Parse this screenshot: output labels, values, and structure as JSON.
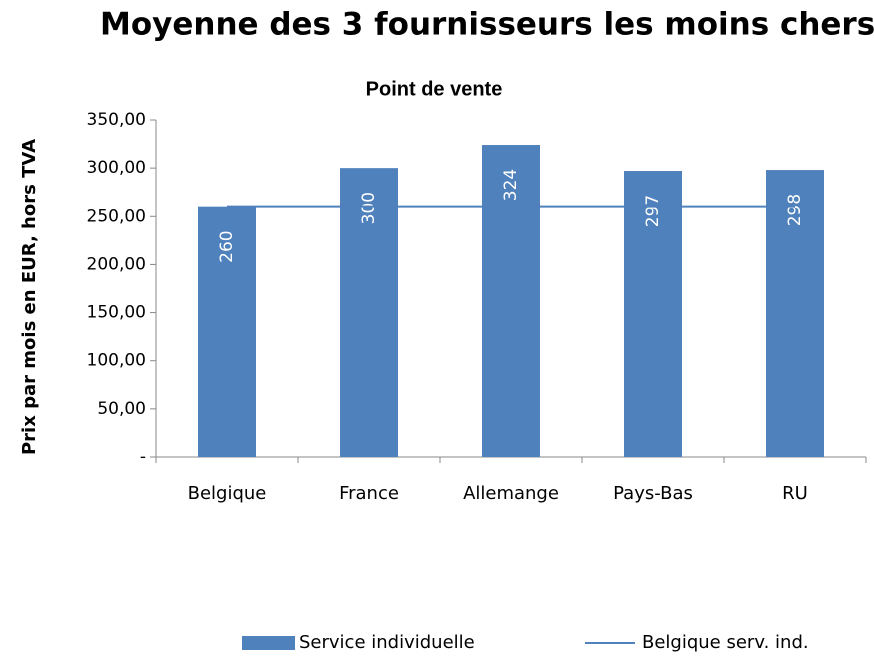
{
  "chart_data": {
    "type": "bar",
    "title": "Moyenne des 3 fournisseurs les moins chers",
    "subtitle": "Point de vente",
    "y_label": "Prix par mois en EUR, hors TVA",
    "categories": [
      "Belgique",
      "France",
      "Allemange",
      "Pays-Bas",
      "RU"
    ],
    "series": [
      {
        "name": "Service individuelle",
        "type": "bar",
        "color": "#4f81bd",
        "values": [
          260,
          300,
          324,
          297,
          298
        ]
      },
      {
        "name": "Belgique serv. ind.",
        "type": "line",
        "color": "#4f81bd",
        "values": [
          260,
          260,
          260,
          260,
          260
        ]
      }
    ],
    "ylim": [
      0,
      350
    ],
    "yticks": [
      {
        "value": 0,
        "label": "-"
      },
      {
        "value": 50,
        "label": "50,00"
      },
      {
        "value": 100,
        "label": "100,00"
      },
      {
        "value": 150,
        "label": "150,00"
      },
      {
        "value": 200,
        "label": "200,00"
      },
      {
        "value": 250,
        "label": "250,00"
      },
      {
        "value": 300,
        "label": "300,00"
      },
      {
        "value": 350,
        "label": "350,00"
      }
    ],
    "legend": "bottom"
  }
}
